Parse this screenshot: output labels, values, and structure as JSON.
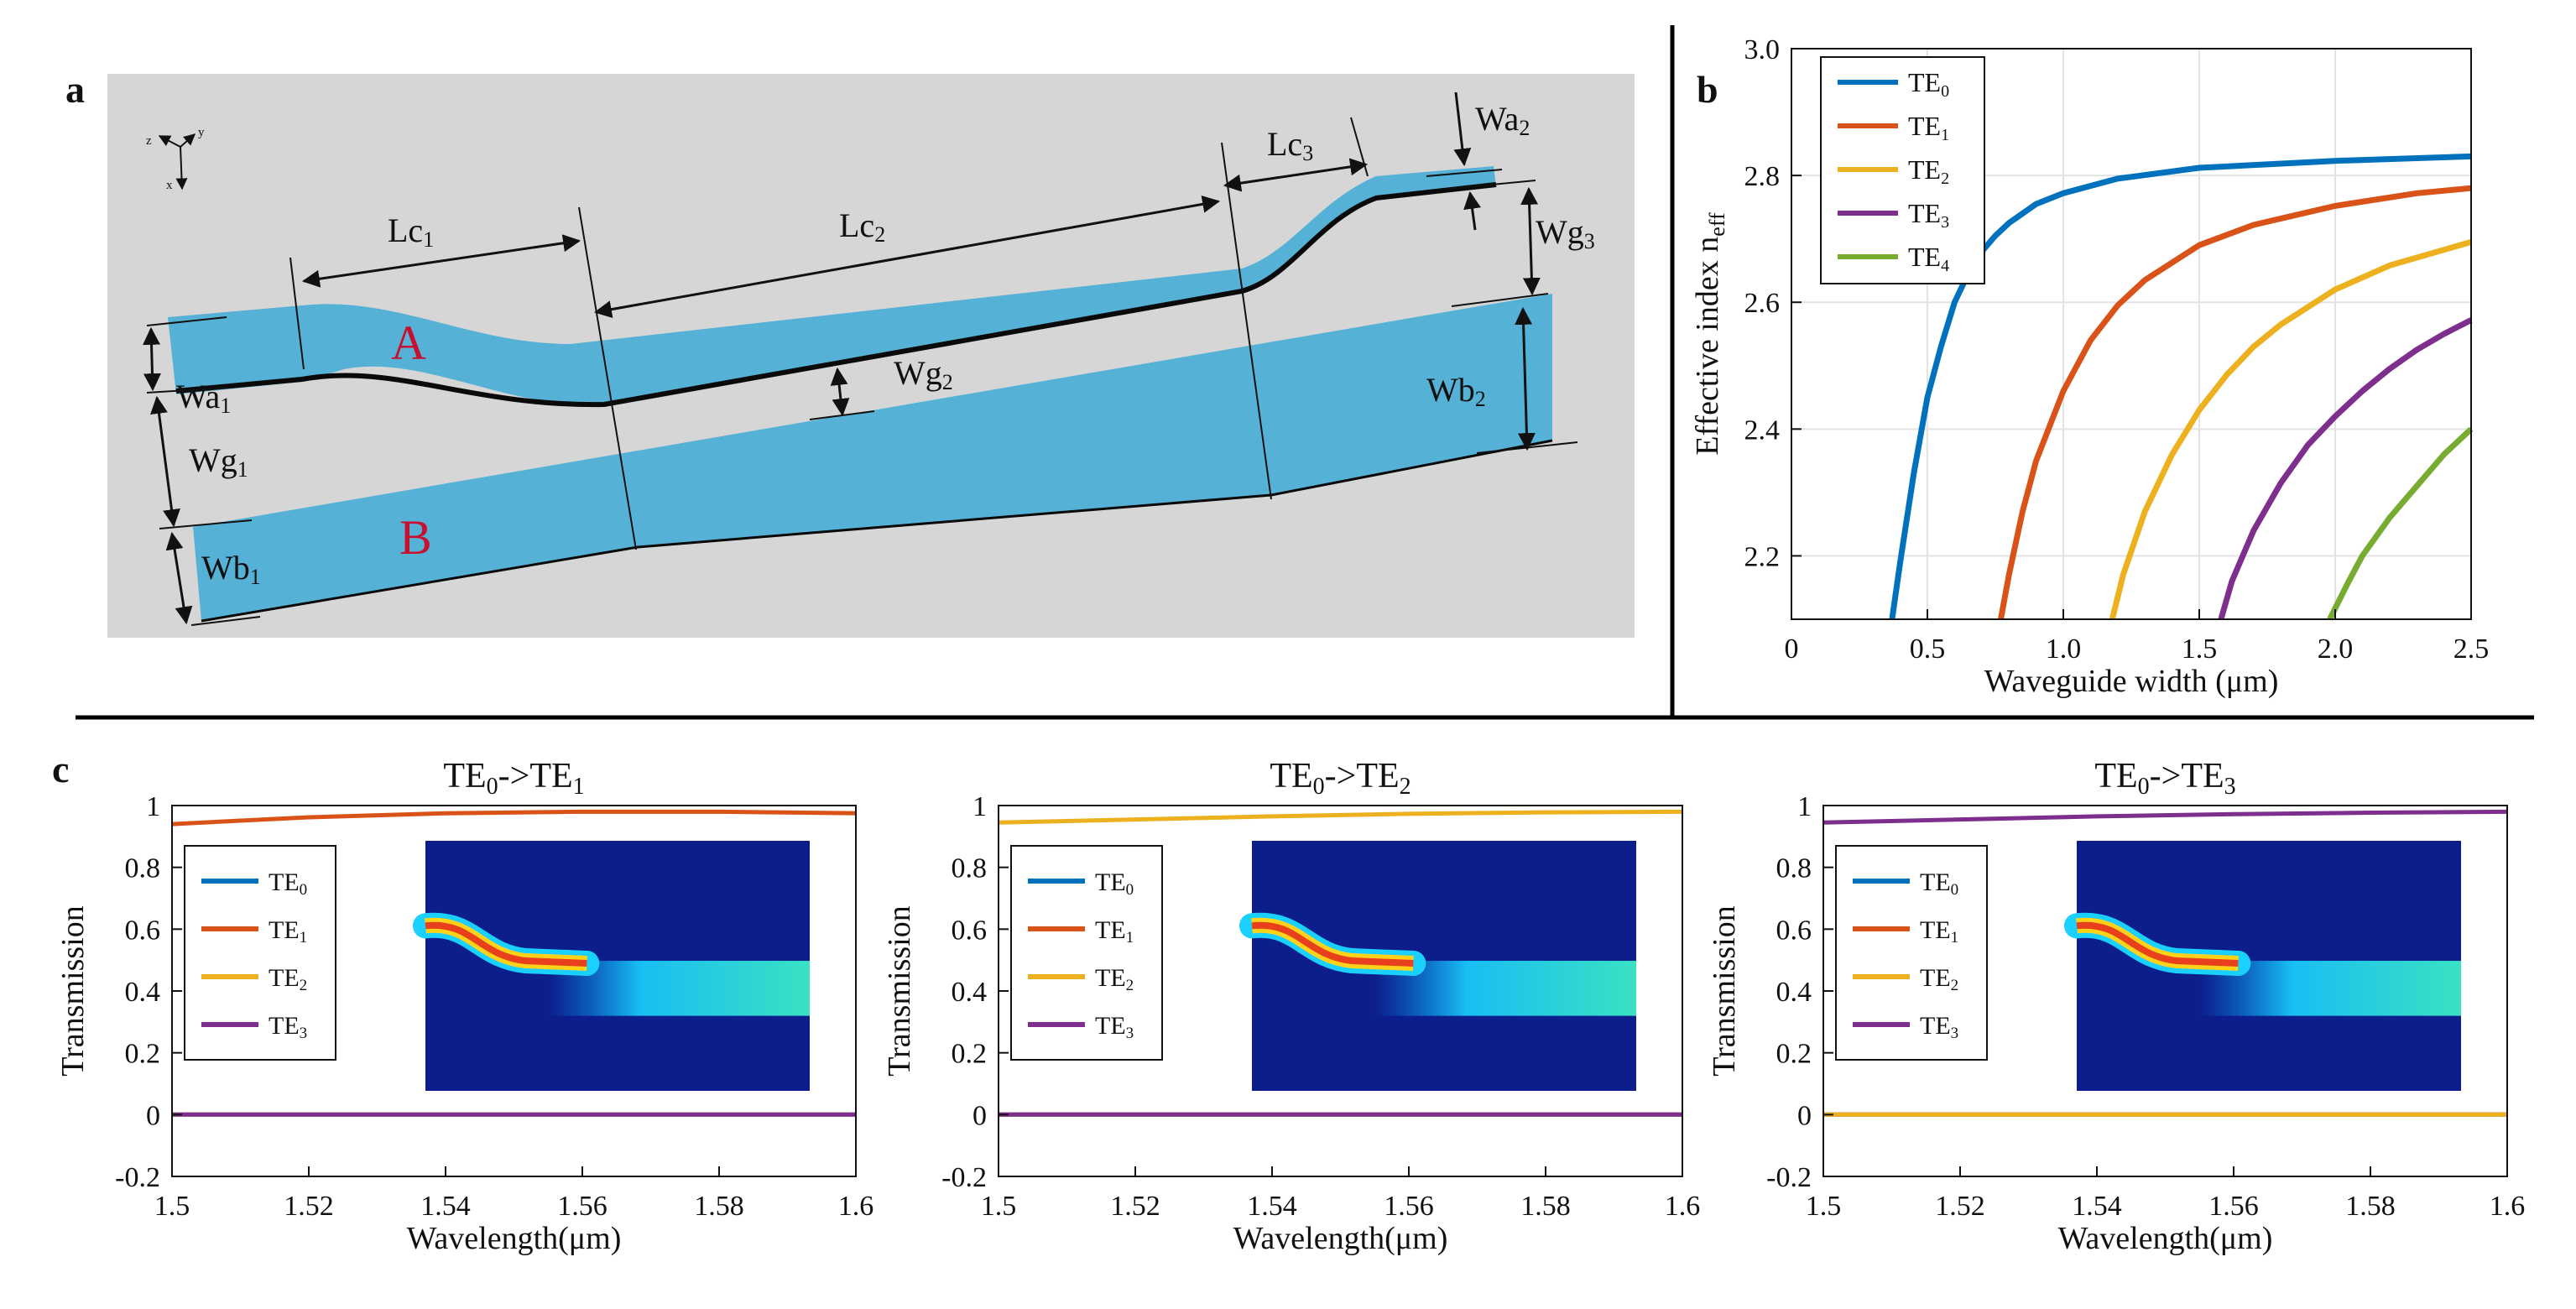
{
  "panels": {
    "a": "a",
    "b": "b",
    "c": "c"
  },
  "schematic": {
    "axes_labels": {
      "x": "x",
      "y": "y",
      "z": "z"
    },
    "region_a": "A",
    "region_b": "B",
    "dimensions": {
      "Wa1": {
        "base": "Wa",
        "sub": "1"
      },
      "Wg1": {
        "base": "Wg",
        "sub": "1"
      },
      "Wb1": {
        "base": "Wb",
        "sub": "1"
      },
      "Lc1": {
        "base": "Lc",
        "sub": "1"
      },
      "Lc2": {
        "base": "Lc",
        "sub": "2"
      },
      "Lc3": {
        "base": "Lc",
        "sub": "3"
      },
      "Wg2": {
        "base": "Wg",
        "sub": "2"
      },
      "Wa2": {
        "base": "Wa",
        "sub": "2"
      },
      "Wg3": {
        "base": "Wg",
        "sub": "3"
      },
      "Wb2": {
        "base": "Wb",
        "sub": "2"
      }
    },
    "colors": {
      "background": "#d6d6d6",
      "waveguide": "#55b1d6",
      "edge": "#0a0a0a"
    }
  },
  "chart_data": [
    {
      "id": "b",
      "type": "line",
      "xlabel": "Waveguide width (μm)",
      "ylabel": "Effective index n",
      "ylabel_sub": "eff",
      "xlim": [
        0,
        2.5
      ],
      "ylim": [
        2.1,
        3.0
      ],
      "xticks": [
        "0",
        "0.5",
        "1.0",
        "1.5",
        "2.0",
        "2.5"
      ],
      "yticks": [
        "2.2",
        "2.4",
        "2.6",
        "2.8",
        "3.0"
      ],
      "grid": true,
      "legend": "top-left",
      "series": [
        {
          "name": "TE",
          "sub": "0",
          "color": "#0072bd",
          "x": [
            0.37,
            0.4,
            0.45,
            0.5,
            0.55,
            0.6,
            0.65,
            0.7,
            0.75,
            0.8,
            0.9,
            1.0,
            1.2,
            1.5,
            2.0,
            2.5
          ],
          "y": [
            2.1,
            2.19,
            2.33,
            2.45,
            2.53,
            2.6,
            2.645,
            2.68,
            2.705,
            2.725,
            2.755,
            2.772,
            2.795,
            2.812,
            2.823,
            2.83
          ]
        },
        {
          "name": "TE",
          "sub": "1",
          "color": "#d95319",
          "x": [
            0.77,
            0.8,
            0.85,
            0.9,
            1.0,
            1.1,
            1.2,
            1.3,
            1.5,
            1.7,
            2.0,
            2.3,
            2.5
          ],
          "y": [
            2.1,
            2.17,
            2.27,
            2.35,
            2.46,
            2.54,
            2.595,
            2.635,
            2.69,
            2.722,
            2.752,
            2.772,
            2.78
          ]
        },
        {
          "name": "TE",
          "sub": "2",
          "color": "#edb120",
          "x": [
            1.18,
            1.22,
            1.3,
            1.4,
            1.5,
            1.6,
            1.7,
            1.8,
            2.0,
            2.2,
            2.5
          ],
          "y": [
            2.1,
            2.17,
            2.27,
            2.36,
            2.43,
            2.485,
            2.53,
            2.565,
            2.62,
            2.658,
            2.695
          ]
        },
        {
          "name": "TE",
          "sub": "3",
          "color": "#7e2f8e",
          "x": [
            1.58,
            1.62,
            1.7,
            1.8,
            1.9,
            2.0,
            2.1,
            2.2,
            2.3,
            2.4,
            2.5
          ],
          "y": [
            2.1,
            2.16,
            2.24,
            2.315,
            2.375,
            2.42,
            2.46,
            2.495,
            2.525,
            2.55,
            2.572
          ]
        },
        {
          "name": "TE",
          "sub": "4",
          "color": "#77ac30",
          "x": [
            1.98,
            2.05,
            2.1,
            2.2,
            2.3,
            2.4,
            2.5
          ],
          "y": [
            2.1,
            2.16,
            2.2,
            2.26,
            2.31,
            2.36,
            2.4
          ]
        }
      ]
    },
    {
      "id": "c1",
      "type": "line",
      "title": "TE",
      "title_parts": {
        "a": "TE",
        "a_sub": "0",
        "arrow": "->",
        "b": "TE",
        "b_sub": "1"
      },
      "xlabel": "Wavelength(μm)",
      "ylabel": "Transmission",
      "xlim": [
        1.5,
        1.6
      ],
      "ylim": [
        -0.2,
        1.0
      ],
      "xticks": [
        "1.5",
        "1.52",
        "1.54",
        "1.56",
        "1.58",
        "1.6"
      ],
      "yticks": [
        "-0.2",
        "0",
        "0.2",
        "0.4",
        "0.6",
        "0.8",
        "1"
      ],
      "legend": "left",
      "series": [
        {
          "name": "TE",
          "sub": "0",
          "color": "#0072bd",
          "x": [
            1.5,
            1.6
          ],
          "y": [
            0.0,
            0.0
          ]
        },
        {
          "name": "TE",
          "sub": "1",
          "color": "#d95319",
          "x": [
            1.5,
            1.52,
            1.54,
            1.56,
            1.58,
            1.6
          ],
          "y": [
            0.94,
            0.962,
            0.975,
            0.98,
            0.98,
            0.975
          ]
        },
        {
          "name": "TE",
          "sub": "2",
          "color": "#edb120",
          "x": [
            1.5,
            1.6
          ],
          "y": [
            0.0,
            0.0
          ]
        },
        {
          "name": "TE",
          "sub": "3",
          "color": "#7e2f8e",
          "x": [
            1.5,
            1.6
          ],
          "y": [
            0.0,
            0.0
          ]
        }
      ]
    },
    {
      "id": "c2",
      "type": "line",
      "title_parts": {
        "a": "TE",
        "a_sub": "0",
        "arrow": "->",
        "b": "TE",
        "b_sub": "2"
      },
      "xlabel": "Wavelength(μm)",
      "ylabel": "Transmission",
      "xlim": [
        1.5,
        1.6
      ],
      "ylim": [
        -0.2,
        1.0
      ],
      "xticks": [
        "1.5",
        "1.52",
        "1.54",
        "1.56",
        "1.58",
        "1.6"
      ],
      "yticks": [
        "-0.2",
        "0",
        "0.2",
        "0.4",
        "0.6",
        "0.8",
        "1"
      ],
      "legend": "left",
      "series": [
        {
          "name": "TE",
          "sub": "0",
          "color": "#0072bd",
          "x": [
            1.5,
            1.6
          ],
          "y": [
            0.0,
            0.0
          ]
        },
        {
          "name": "TE",
          "sub": "1",
          "color": "#d95319",
          "x": [
            1.5,
            1.6
          ],
          "y": [
            0.0,
            0.0
          ]
        },
        {
          "name": "TE",
          "sub": "2",
          "color": "#edb120",
          "x": [
            1.5,
            1.52,
            1.54,
            1.56,
            1.58,
            1.6
          ],
          "y": [
            0.945,
            0.955,
            0.965,
            0.973,
            0.978,
            0.98
          ]
        },
        {
          "name": "TE",
          "sub": "3",
          "color": "#7e2f8e",
          "x": [
            1.5,
            1.6
          ],
          "y": [
            0.0,
            0.0
          ]
        }
      ]
    },
    {
      "id": "c3",
      "type": "line",
      "title_parts": {
        "a": "TE",
        "a_sub": "0",
        "arrow": "->",
        "b": "TE",
        "b_sub": "3"
      },
      "xlabel": "Wavelength(μm)",
      "ylabel": "Transmission",
      "xlim": [
        1.5,
        1.6
      ],
      "ylim": [
        -0.2,
        1.0
      ],
      "xticks": [
        "1.5",
        "1.52",
        "1.54",
        "1.56",
        "1.58",
        "1.6"
      ],
      "yticks": [
        "-0.2",
        "0",
        "0.2",
        "0.4",
        "0.6",
        "0.8",
        "1"
      ],
      "legend": "left",
      "series": [
        {
          "name": "TE",
          "sub": "0",
          "color": "#0072bd",
          "x": [
            1.5,
            1.6
          ],
          "y": [
            0.0,
            0.0
          ]
        },
        {
          "name": "TE",
          "sub": "1",
          "color": "#d95319",
          "x": [
            1.5,
            1.6
          ],
          "y": [
            0.0,
            0.0
          ]
        },
        {
          "name": "TE",
          "sub": "2",
          "color": "#edb120",
          "x": [
            1.5,
            1.6
          ],
          "y": [
            0.0,
            0.0
          ]
        },
        {
          "name": "TE",
          "sub": "3",
          "color": "#7e2f8e",
          "x": [
            1.5,
            1.52,
            1.54,
            1.56,
            1.58,
            1.6
          ],
          "y": [
            0.945,
            0.955,
            0.965,
            0.972,
            0.977,
            0.98
          ]
        }
      ]
    }
  ]
}
